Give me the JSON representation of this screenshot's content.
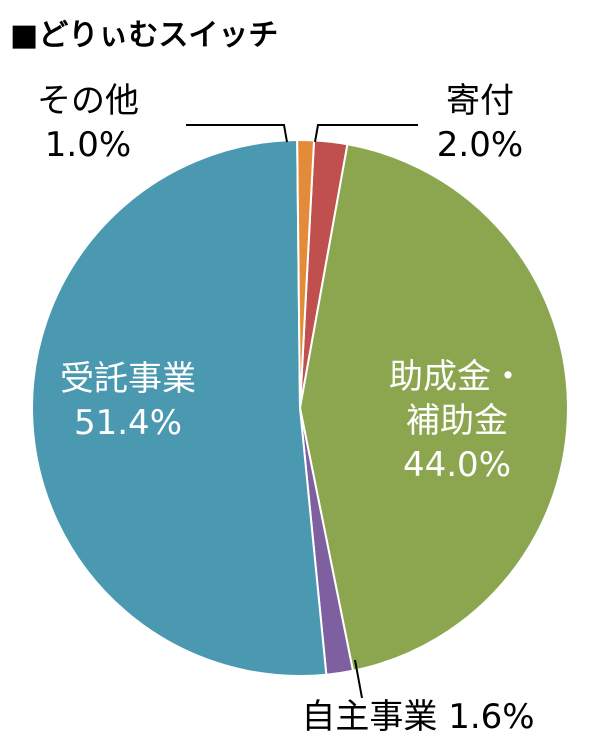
{
  "chart_data": {
    "type": "pie",
    "title": "■どりぃむスイッチ",
    "slices": [
      {
        "label": "寄付",
        "label_lines": [
          "寄付"
        ],
        "value": 2.0,
        "value_text": "2.0%",
        "color": "#c0504d",
        "label_color": "#000000"
      },
      {
        "label": "助成金・補助金",
        "label_lines": [
          "助成金・",
          "補助金"
        ],
        "value": 44.0,
        "value_text": "44.0%",
        "color": "#8ca650",
        "label_color": "#ffffff"
      },
      {
        "label": "自主事業",
        "label_lines": [
          "自主事業"
        ],
        "value": 1.6,
        "value_text": "1.6%",
        "color": "#7e5f9f",
        "label_color": "#000000"
      },
      {
        "label": "受託事業",
        "label_lines": [
          "受託事業"
        ],
        "value": 51.4,
        "value_text": "51.4%",
        "color": "#4a99b0",
        "label_color": "#ffffff"
      },
      {
        "label": "その他",
        "label_lines": [
          "その他"
        ],
        "value": 1.0,
        "value_text": "1.0%",
        "color": "#e48b3a",
        "label_color": "#000000"
      }
    ]
  }
}
